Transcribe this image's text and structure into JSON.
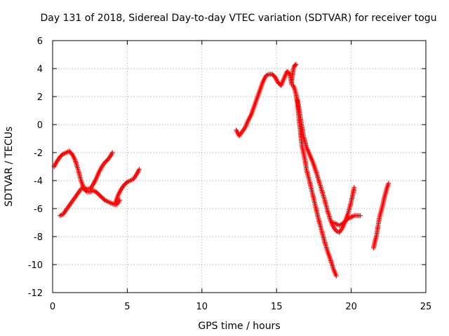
{
  "chart_data": {
    "type": "scatter",
    "title": "Day 131 of 2018, Sidereal Day-to-day VTEC variation (SDTVAR) for receiver togu",
    "xlabel": "GPS time / hours",
    "ylabel": "SDTVAR / TECUs",
    "xlim": [
      0,
      25
    ],
    "ylim": [
      -12,
      6
    ],
    "xticks": [
      0,
      5,
      10,
      15,
      20,
      25
    ],
    "yticks": [
      -12,
      -10,
      -8,
      -6,
      -4,
      -2,
      0,
      2,
      4,
      6
    ],
    "grid": true,
    "marker": "plus",
    "color": "#ff0000",
    "series": [
      {
        "x": [
          0.1,
          0.3,
          0.5,
          0.7,
          0.9,
          1.1,
          1.3,
          1.5,
          1.7,
          1.9,
          2.1,
          2.3,
          2.5,
          2.7,
          2.9,
          3.1,
          3.3,
          3.5,
          3.7,
          3.9,
          4.1,
          4.3,
          4.5
        ],
        "y": [
          -3.0,
          -2.6,
          -2.3,
          -2.1,
          -2.0,
          -1.9,
          -2.1,
          -2.5,
          -3.2,
          -4.0,
          -4.6,
          -4.8,
          -4.8,
          -4.7,
          -4.8,
          -5.0,
          -5.2,
          -5.4,
          -5.5,
          -5.6,
          -5.7,
          -5.7,
          -5.4
        ]
      },
      {
        "x": [
          0.5,
          0.7,
          0.9,
          1.1,
          1.3,
          1.5,
          1.7,
          1.9,
          2.1,
          2.3,
          2.5,
          2.7,
          2.9,
          3.1,
          3.3,
          3.5,
          3.7,
          3.9,
          4.0
        ],
        "y": [
          -6.5,
          -6.4,
          -6.1,
          -5.8,
          -5.5,
          -5.2,
          -4.9,
          -4.6,
          -4.5,
          -4.6,
          -4.6,
          -4.3,
          -3.9,
          -3.4,
          -3.0,
          -2.7,
          -2.5,
          -2.2,
          -2.0
        ]
      },
      {
        "x": [
          4.2,
          4.4,
          4.6,
          4.8,
          5.0,
          5.2,
          5.4,
          5.6,
          5.8
        ],
        "y": [
          -5.6,
          -5.0,
          -4.6,
          -4.3,
          -4.1,
          -4.0,
          -3.9,
          -3.6,
          -3.2
        ]
      },
      {
        "x": [
          12.3,
          12.5,
          12.7,
          12.9,
          13.1,
          13.3,
          13.5,
          13.7,
          13.9,
          14.1,
          14.3,
          14.5,
          14.7,
          14.9,
          15.1,
          15.3,
          15.5,
          15.7,
          15.9,
          16.0,
          16.1,
          16.2,
          16.3
        ],
        "y": [
          -0.4,
          -0.8,
          -0.5,
          -0.2,
          0.3,
          0.7,
          1.3,
          1.9,
          2.5,
          3.1,
          3.5,
          3.6,
          3.6,
          3.4,
          3.0,
          2.8,
          3.3,
          3.8,
          3.6,
          2.9,
          3.9,
          4.2,
          4.3
        ]
      },
      {
        "x": [
          16.1,
          16.2,
          16.3,
          16.4,
          16.5,
          16.6,
          16.7,
          16.8,
          16.9,
          17.0,
          17.2,
          17.4,
          17.6,
          17.8,
          18.0,
          18.2,
          18.4,
          18.6,
          18.8,
          19.0
        ],
        "y": [
          2.8,
          2.6,
          2.2,
          1.5,
          0.5,
          -0.5,
          -1.5,
          -2.0,
          -2.5,
          -3.2,
          -4.0,
          -4.9,
          -5.8,
          -6.7,
          -7.5,
          -8.3,
          -9.0,
          -9.6,
          -10.3,
          -10.8
        ]
      },
      {
        "x": [
          16.4,
          16.6,
          16.8,
          17.0,
          17.2,
          17.4,
          17.6,
          17.8,
          18.0,
          18.2,
          18.4,
          18.6,
          18.8,
          19.0,
          19.2,
          19.4,
          19.6,
          19.8,
          20.0,
          20.2
        ],
        "y": [
          1.8,
          0.5,
          -0.8,
          -1.6,
          -2.1,
          -2.6,
          -3.2,
          -3.9,
          -4.6,
          -5.3,
          -6.1,
          -6.8,
          -7.3,
          -7.6,
          -7.7,
          -7.4,
          -6.9,
          -6.3,
          -5.5,
          -4.5
        ]
      },
      {
        "x": [
          18.8,
          19.0,
          19.2,
          19.4,
          19.6,
          19.8,
          20.0,
          20.2,
          20.4,
          20.6
        ],
        "y": [
          -7.0,
          -7.1,
          -7.2,
          -7.1,
          -6.9,
          -6.7,
          -6.6,
          -6.5,
          -6.5,
          -6.5
        ]
      },
      {
        "x": [
          21.5,
          21.6,
          21.7,
          21.8,
          21.9,
          22.0,
          22.1,
          22.2,
          22.3,
          22.4,
          22.5
        ],
        "y": [
          -8.8,
          -8.3,
          -7.9,
          -7.2,
          -6.6,
          -6.2,
          -5.8,
          -5.3,
          -4.9,
          -4.5,
          -4.2
        ]
      }
    ]
  }
}
